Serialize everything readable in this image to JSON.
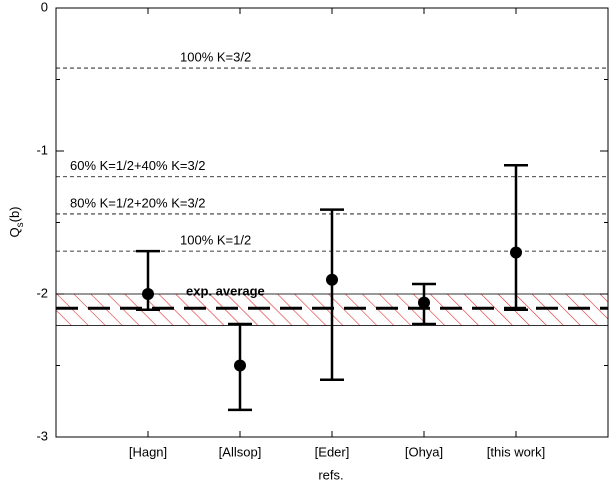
{
  "chart_data": {
    "type": "errorbar",
    "categories": [
      "[Hagn]",
      "[Allsop]",
      "[Eder]",
      "[Ohya]",
      "[this work]"
    ],
    "values": [
      -2.0,
      -2.5,
      -1.9,
      -2.06,
      -1.71
    ],
    "upper": [
      -1.7,
      -2.21,
      -1.41,
      -1.93,
      -1.1
    ],
    "lower": [
      -2.11,
      -2.81,
      -2.6,
      -2.21,
      -2.11
    ],
    "color": "#000000",
    "xlabel": "refs.",
    "ylabel": {
      "main": "Q",
      "sub": "s",
      "rest": "(b)"
    },
    "ylim": [
      -3,
      0
    ],
    "yticks": [
      0,
      -1,
      -2,
      -3
    ],
    "yminor": [
      -0.5,
      -1.5,
      -2.5
    ],
    "reference_lines": [
      {
        "label": "100% K=3/2",
        "value": -0.42
      },
      {
        "label": "60% K=1/2+40% K=3/2",
        "value": -1.18
      },
      {
        "label": "80% K=1/2+20% K=3/2",
        "value": -1.44
      },
      {
        "label": "100% K=1/2",
        "value": -1.7
      }
    ],
    "average": {
      "label": "exp. average",
      "value": -2.1,
      "band": [
        -2.0,
        -2.22
      ],
      "band_color": "#e03030"
    }
  }
}
